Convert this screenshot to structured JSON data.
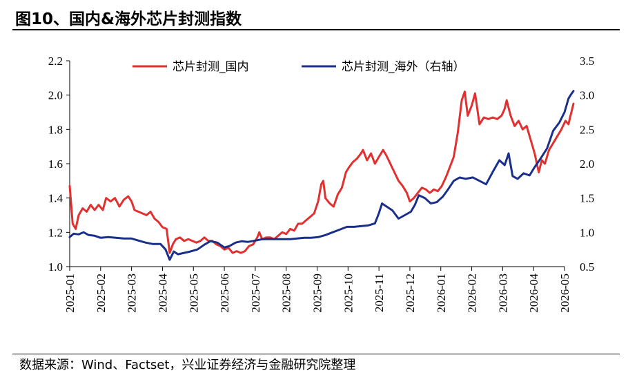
{
  "title": "图10、国内&海外芯片封测指数",
  "source": "数据来源：Wind、Factset，兴业证券经济与金融研究院整理",
  "chart_data": {
    "type": "line",
    "x_categories": [
      "2025-01",
      "2025-02",
      "2025-03",
      "2025-04",
      "2025-05",
      "2025-06",
      "2025-07",
      "2025-08",
      "2025-09",
      "2025-10",
      "2025-11",
      "2025-12",
      "2026-01",
      "2026-02",
      "2026-03",
      "2026-04",
      "2026-05"
    ],
    "y_left": {
      "ticks": [
        "1.0",
        "1.2",
        "1.4",
        "1.6",
        "1.8",
        "2.0",
        "2.2"
      ],
      "ylim": [
        1.0,
        2.2
      ]
    },
    "y_right": {
      "ticks": [
        "0.5",
        "1.0",
        "1.5",
        "2.0",
        "2.5",
        "3.0",
        "3.5"
      ],
      "ylim": [
        0.5,
        3.5
      ]
    },
    "grid": false,
    "legend_position": "top",
    "series": [
      {
        "name": "芯片封测_国内",
        "axis": "left",
        "color": "#e03030",
        "points": [
          [
            "2025-01-01",
            1.47
          ],
          [
            "2025-01-04",
            1.25
          ],
          [
            "2025-01-07",
            1.22
          ],
          [
            "2025-01-10",
            1.3
          ],
          [
            "2025-01-14",
            1.34
          ],
          [
            "2025-01-18",
            1.32
          ],
          [
            "2025-01-22",
            1.36
          ],
          [
            "2025-01-26",
            1.33
          ],
          [
            "2025-01-30",
            1.36
          ],
          [
            "2025-02-03",
            1.33
          ],
          [
            "2025-02-06",
            1.4
          ],
          [
            "2025-02-10",
            1.38
          ],
          [
            "2025-02-14",
            1.4
          ],
          [
            "2025-02-18",
            1.35
          ],
          [
            "2025-02-22",
            1.39
          ],
          [
            "2025-02-26",
            1.41
          ],
          [
            "2025-03-01",
            1.38
          ],
          [
            "2025-03-04",
            1.33
          ],
          [
            "2025-03-08",
            1.32
          ],
          [
            "2025-03-12",
            1.31
          ],
          [
            "2025-03-16",
            1.3
          ],
          [
            "2025-03-20",
            1.32
          ],
          [
            "2025-03-24",
            1.28
          ],
          [
            "2025-03-28",
            1.26
          ],
          [
            "2025-04-01",
            1.23
          ],
          [
            "2025-04-05",
            1.22
          ],
          [
            "2025-04-08",
            1.08
          ],
          [
            "2025-04-11",
            1.13
          ],
          [
            "2025-04-14",
            1.16
          ],
          [
            "2025-04-18",
            1.17
          ],
          [
            "2025-04-22",
            1.15
          ],
          [
            "2025-04-26",
            1.16
          ],
          [
            "2025-04-30",
            1.15
          ],
          [
            "2025-05-04",
            1.14
          ],
          [
            "2025-05-08",
            1.15
          ],
          [
            "2025-05-12",
            1.17
          ],
          [
            "2025-05-16",
            1.15
          ],
          [
            "2025-05-20",
            1.15
          ],
          [
            "2025-05-24",
            1.13
          ],
          [
            "2025-05-28",
            1.12
          ],
          [
            "2025-06-01",
            1.1
          ],
          [
            "2025-06-05",
            1.11
          ],
          [
            "2025-06-09",
            1.08
          ],
          [
            "2025-06-13",
            1.09
          ],
          [
            "2025-06-17",
            1.08
          ],
          [
            "2025-06-21",
            1.09
          ],
          [
            "2025-06-25",
            1.12
          ],
          [
            "2025-06-29",
            1.13
          ],
          [
            "2025-07-03",
            1.17
          ],
          [
            "2025-07-05",
            1.2
          ],
          [
            "2025-07-08",
            1.16
          ],
          [
            "2025-07-12",
            1.17
          ],
          [
            "2025-07-16",
            1.17
          ],
          [
            "2025-07-20",
            1.16
          ],
          [
            "2025-07-24",
            1.18
          ],
          [
            "2025-07-28",
            1.2
          ],
          [
            "2025-08-01",
            1.19
          ],
          [
            "2025-08-05",
            1.22
          ],
          [
            "2025-08-09",
            1.21
          ],
          [
            "2025-08-13",
            1.25
          ],
          [
            "2025-08-17",
            1.25
          ],
          [
            "2025-08-21",
            1.27
          ],
          [
            "2025-08-25",
            1.29
          ],
          [
            "2025-08-29",
            1.31
          ],
          [
            "2025-09-02",
            1.38
          ],
          [
            "2025-09-05",
            1.48
          ],
          [
            "2025-09-07",
            1.5
          ],
          [
            "2025-09-09",
            1.4
          ],
          [
            "2025-09-13",
            1.37
          ],
          [
            "2025-09-17",
            1.35
          ],
          [
            "2025-09-21",
            1.42
          ],
          [
            "2025-09-25",
            1.46
          ],
          [
            "2025-09-29",
            1.55
          ],
          [
            "2025-10-02",
            1.58
          ],
          [
            "2025-10-06",
            1.61
          ],
          [
            "2025-10-10",
            1.63
          ],
          [
            "2025-10-14",
            1.66
          ],
          [
            "2025-10-16",
            1.68
          ],
          [
            "2025-10-20",
            1.62
          ],
          [
            "2025-10-24",
            1.66
          ],
          [
            "2025-10-28",
            1.6
          ],
          [
            "2025-11-01",
            1.64
          ],
          [
            "2025-11-05",
            1.68
          ],
          [
            "2025-11-08",
            1.65
          ],
          [
            "2025-11-12",
            1.6
          ],
          [
            "2025-11-16",
            1.55
          ],
          [
            "2025-11-20",
            1.5
          ],
          [
            "2025-11-24",
            1.47
          ],
          [
            "2025-11-28",
            1.43
          ],
          [
            "2025-12-01",
            1.38
          ],
          [
            "2025-12-05",
            1.4
          ],
          [
            "2025-12-09",
            1.43
          ],
          [
            "2025-12-13",
            1.46
          ],
          [
            "2025-12-17",
            1.45
          ],
          [
            "2025-12-21",
            1.43
          ],
          [
            "2025-12-25",
            1.45
          ],
          [
            "2025-12-29",
            1.44
          ],
          [
            "2026-01-02",
            1.47
          ],
          [
            "2026-01-06",
            1.52
          ],
          [
            "2026-01-10",
            1.58
          ],
          [
            "2026-01-14",
            1.64
          ],
          [
            "2026-01-18",
            1.78
          ],
          [
            "2026-01-22",
            1.97
          ],
          [
            "2026-01-25",
            2.02
          ],
          [
            "2026-01-28",
            1.88
          ],
          [
            "2026-02-01",
            1.94
          ],
          [
            "2026-02-04",
            2.01
          ],
          [
            "2026-02-08",
            1.83
          ],
          [
            "2026-02-12",
            1.87
          ],
          [
            "2026-02-16",
            1.86
          ],
          [
            "2026-02-20",
            1.87
          ],
          [
            "2026-02-24",
            1.86
          ],
          [
            "2026-02-28",
            1.88
          ],
          [
            "2026-03-03",
            1.92
          ],
          [
            "2026-03-05",
            1.97
          ],
          [
            "2026-03-09",
            1.88
          ],
          [
            "2026-03-13",
            1.82
          ],
          [
            "2026-03-17",
            1.85
          ],
          [
            "2026-03-21",
            1.8
          ],
          [
            "2026-03-25",
            1.82
          ],
          [
            "2026-03-29",
            1.74
          ],
          [
            "2026-04-02",
            1.66
          ],
          [
            "2026-04-06",
            1.55
          ],
          [
            "2026-04-09",
            1.62
          ],
          [
            "2026-04-12",
            1.6
          ],
          [
            "2026-04-16",
            1.68
          ],
          [
            "2026-04-20",
            1.72
          ],
          [
            "2026-04-24",
            1.76
          ],
          [
            "2026-04-28",
            1.8
          ],
          [
            "2026-05-02",
            1.85
          ],
          [
            "2026-05-05",
            1.83
          ],
          [
            "2026-05-07",
            1.88
          ],
          [
            "2026-05-10",
            1.95
          ]
        ]
      },
      {
        "name": "芯片封测_海外（右轴）",
        "axis": "right",
        "color": "#1a2f8a",
        "points": [
          [
            "2025-01-01",
            0.93
          ],
          [
            "2025-01-05",
            0.98
          ],
          [
            "2025-01-10",
            0.97
          ],
          [
            "2025-01-15",
            1.0
          ],
          [
            "2025-01-20",
            0.96
          ],
          [
            "2025-01-26",
            0.95
          ],
          [
            "2025-02-01",
            0.92
          ],
          [
            "2025-02-08",
            0.93
          ],
          [
            "2025-02-15",
            0.92
          ],
          [
            "2025-02-22",
            0.91
          ],
          [
            "2025-03-01",
            0.91
          ],
          [
            "2025-03-08",
            0.88
          ],
          [
            "2025-03-15",
            0.85
          ],
          [
            "2025-03-22",
            0.83
          ],
          [
            "2025-03-30",
            0.83
          ],
          [
            "2025-04-04",
            0.75
          ],
          [
            "2025-04-08",
            0.6
          ],
          [
            "2025-04-12",
            0.72
          ],
          [
            "2025-04-16",
            0.68
          ],
          [
            "2025-04-22",
            0.7
          ],
          [
            "2025-04-28",
            0.72
          ],
          [
            "2025-05-05",
            0.75
          ],
          [
            "2025-05-12",
            0.82
          ],
          [
            "2025-05-18",
            0.87
          ],
          [
            "2025-05-25",
            0.85
          ],
          [
            "2025-06-01",
            0.78
          ],
          [
            "2025-06-06",
            0.8
          ],
          [
            "2025-06-12",
            0.85
          ],
          [
            "2025-06-18",
            0.87
          ],
          [
            "2025-06-24",
            0.86
          ],
          [
            "2025-07-01",
            0.88
          ],
          [
            "2025-07-08",
            0.9
          ],
          [
            "2025-07-15",
            0.9
          ],
          [
            "2025-07-22",
            0.9
          ],
          [
            "2025-07-29",
            0.9
          ],
          [
            "2025-08-05",
            0.9
          ],
          [
            "2025-08-12",
            0.91
          ],
          [
            "2025-08-19",
            0.92
          ],
          [
            "2025-08-26",
            0.92
          ],
          [
            "2025-09-02",
            0.93
          ],
          [
            "2025-09-09",
            0.96
          ],
          [
            "2025-09-16",
            1.0
          ],
          [
            "2025-09-23",
            1.04
          ],
          [
            "2025-09-30",
            1.08
          ],
          [
            "2025-10-07",
            1.08
          ],
          [
            "2025-10-14",
            1.09
          ],
          [
            "2025-10-21",
            1.1
          ],
          [
            "2025-10-28",
            1.13
          ],
          [
            "2025-11-01",
            1.28
          ],
          [
            "2025-11-04",
            1.42
          ],
          [
            "2025-11-08",
            1.38
          ],
          [
            "2025-11-14",
            1.32
          ],
          [
            "2025-11-20",
            1.2
          ],
          [
            "2025-11-26",
            1.25
          ],
          [
            "2025-12-02",
            1.3
          ],
          [
            "2025-12-06",
            1.4
          ],
          [
            "2025-12-10",
            1.54
          ],
          [
            "2025-12-16",
            1.5
          ],
          [
            "2025-12-22",
            1.42
          ],
          [
            "2025-12-28",
            1.44
          ],
          [
            "2026-01-03",
            1.52
          ],
          [
            "2026-01-08",
            1.62
          ],
          [
            "2026-01-14",
            1.75
          ],
          [
            "2026-01-20",
            1.8
          ],
          [
            "2026-01-26",
            1.78
          ],
          [
            "2026-02-02",
            1.8
          ],
          [
            "2026-02-08",
            1.75
          ],
          [
            "2026-02-14",
            1.7
          ],
          [
            "2026-02-20",
            1.88
          ],
          [
            "2026-02-26",
            2.05
          ],
          [
            "2026-03-03",
            1.98
          ],
          [
            "2026-03-07",
            2.15
          ],
          [
            "2026-03-11",
            1.82
          ],
          [
            "2026-03-16",
            1.78
          ],
          [
            "2026-03-22",
            1.86
          ],
          [
            "2026-03-28",
            1.83
          ],
          [
            "2026-04-02",
            1.95
          ],
          [
            "2026-04-08",
            2.08
          ],
          [
            "2026-04-14",
            2.22
          ],
          [
            "2026-04-20",
            2.48
          ],
          [
            "2026-04-26",
            2.6
          ],
          [
            "2026-05-01",
            2.75
          ],
          [
            "2026-05-05",
            2.95
          ],
          [
            "2026-05-08",
            3.02
          ],
          [
            "2026-05-10",
            3.06
          ]
        ]
      }
    ]
  }
}
